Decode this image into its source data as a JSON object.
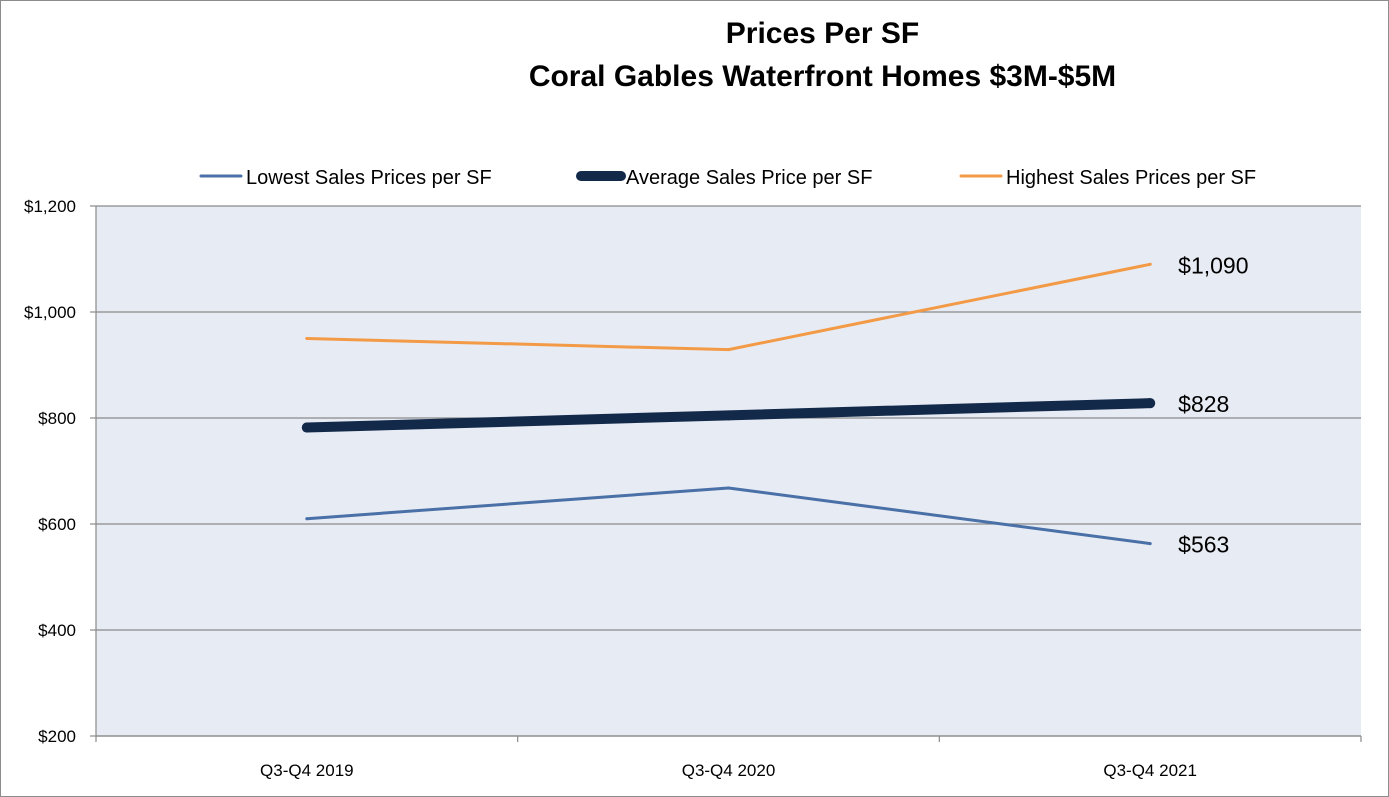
{
  "chart_data": {
    "type": "line",
    "title": "Prices Per SF",
    "subtitle": "Coral Gables Waterfront Homes $3M-$5M",
    "categories": [
      "Q3-Q4 2019",
      "Q3-Q4 2020",
      "Q3-Q4 2021"
    ],
    "ylim": [
      200,
      1200
    ],
    "y_ticks": [
      200,
      400,
      600,
      800,
      1000,
      1200
    ],
    "y_tick_labels": [
      "$200",
      "$400",
      "$600",
      "$800",
      "$1,000",
      "$1,200"
    ],
    "grid": true,
    "legend_position": "top",
    "plot_background": "#e7ebf3",
    "series": [
      {
        "name": "Lowest Sales Prices per SF",
        "color": "#4a70a8",
        "weight": "thin",
        "values": [
          610,
          668,
          563
        ],
        "end_label": "$563"
      },
      {
        "name": "Average Sales Price per SF",
        "color": "#12294a",
        "weight": "thick",
        "values": [
          782,
          805,
          828
        ],
        "end_label": "$828"
      },
      {
        "name": "Highest Sales Prices per SF",
        "color": "#f39a46",
        "weight": "thin",
        "values": [
          950,
          929,
          1090
        ],
        "end_label": "$1,090"
      }
    ]
  }
}
